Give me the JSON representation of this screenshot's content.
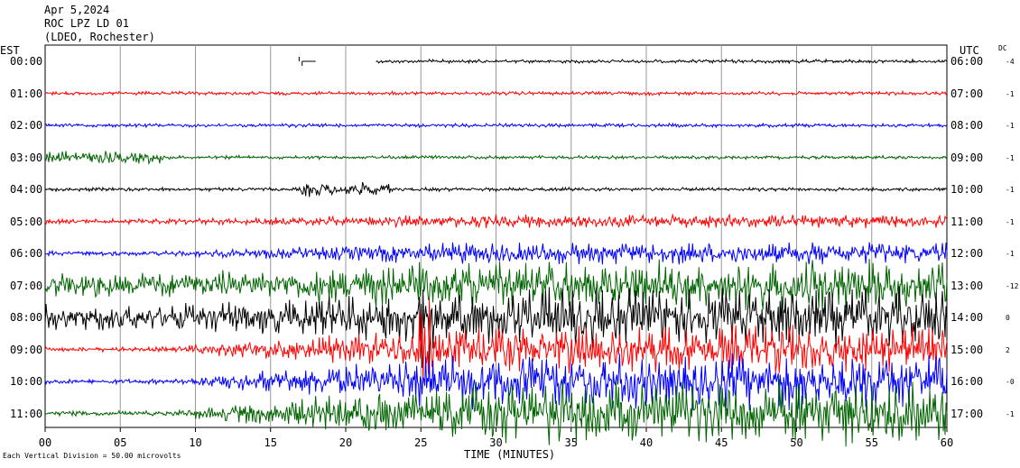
{
  "header": {
    "date": "Apr 5,2024",
    "station": "ROC LPZ LD 01",
    "network": "(LDEO, Rochester)"
  },
  "left_axis_title": "EST",
  "right_axis_title": "UTC",
  "dc_title": "DC",
  "rows": [
    {
      "est": "00:00",
      "utc": "06:00",
      "dc": "-4",
      "color": "#000000"
    },
    {
      "est": "01:00",
      "utc": "07:00",
      "dc": "-1",
      "color": "#ff0000"
    },
    {
      "est": "02:00",
      "utc": "08:00",
      "dc": "-1",
      "color": "#0000ff"
    },
    {
      "est": "03:00",
      "utc": "09:00",
      "dc": "-1",
      "color": "#006400"
    },
    {
      "est": "04:00",
      "utc": "10:00",
      "dc": "-1",
      "color": "#000000"
    },
    {
      "est": "05:00",
      "utc": "11:00",
      "dc": "-1",
      "color": "#ff0000"
    },
    {
      "est": "06:00",
      "utc": "12:00",
      "dc": "-1",
      "color": "#0000ff"
    },
    {
      "est": "07:00",
      "utc": "13:00",
      "dc": "-12",
      "color": "#006400"
    },
    {
      "est": "08:00",
      "utc": "14:00",
      "dc": "0",
      "color": "#000000"
    },
    {
      "est": "09:00",
      "utc": "15:00",
      "dc": "2",
      "color": "#ff0000"
    },
    {
      "est": "10:00",
      "utc": "16:00",
      "dc": "-0",
      "color": "#0000ff"
    },
    {
      "est": "11:00",
      "utc": "17:00",
      "dc": "-1",
      "color": "#006400"
    }
  ],
  "chart_data": {
    "type": "line",
    "title": "ROC LPZ LD 01",
    "xlabel": "TIME (MINUTES)",
    "ylabel": "",
    "x_ticks": [
      "00",
      "05",
      "10",
      "15",
      "20",
      "25",
      "30",
      "35",
      "40",
      "45",
      "50",
      "55",
      "60"
    ],
    "xlim": [
      0,
      60
    ],
    "grid": true,
    "scale_note": "Each Vertical Division = 50.00 microvolts",
    "series_note": "12 hourly helicorder traces, rows 00:00-11:00 EST; large teleseismic/regional event begins near 07:00 EST row, strongest arrivals visible near minute 25 of the 08:00-09:00 EST rows",
    "events": [
      {
        "row_est": "00:00",
        "minute_start": 17,
        "minute_end": 18,
        "note": "data gap / calibration pulse"
      },
      {
        "row_est": "04:00",
        "minute_start": 17,
        "minute_end": 23,
        "note": "small local signal"
      },
      {
        "row_est": "08:00",
        "minute_start": 25,
        "minute_end": 26,
        "note": "peak arrival"
      }
    ]
  }
}
